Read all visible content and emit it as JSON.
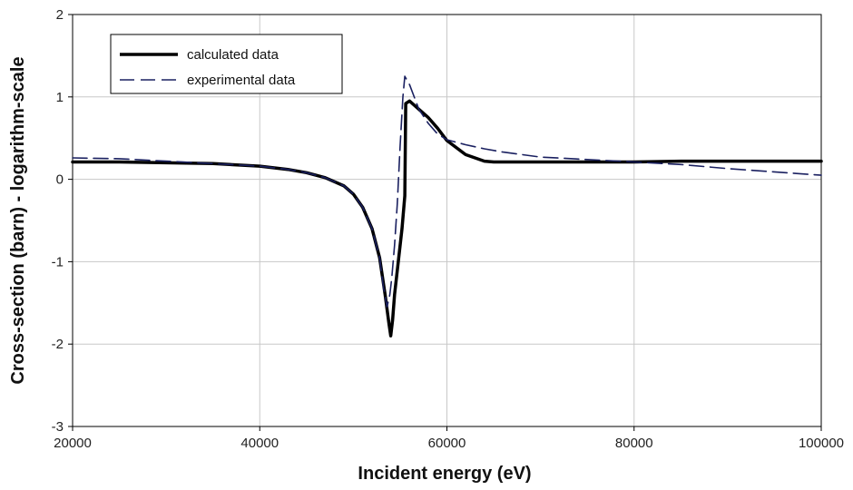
{
  "chart_data": {
    "type": "line",
    "title": "",
    "xlabel": "Incident energy (eV)",
    "ylabel": "Cross-section (barn) - logarithm-scale",
    "xlim": [
      20000,
      100000
    ],
    "ylim": [
      -3,
      2
    ],
    "xticks": [
      20000,
      40000,
      60000,
      80000,
      100000
    ],
    "yticks": [
      2,
      1,
      0,
      -1,
      -2,
      -3
    ],
    "grid": true,
    "legend": "top-left",
    "series": [
      {
        "name": "calculated data",
        "style": "solid",
        "color": "#000000",
        "x": [
          20000,
          25000,
          30000,
          35000,
          40000,
          43000,
          45000,
          47000,
          49000,
          50000,
          51000,
          52000,
          52800,
          53400,
          53800,
          54000,
          54200,
          54400,
          54800,
          55200,
          55500,
          55600,
          56000,
          57000,
          58000,
          59000,
          60000,
          62000,
          64000,
          65000,
          70000,
          80000,
          85000,
          90000,
          100000
        ],
        "y": [
          0.21,
          0.21,
          0.2,
          0.19,
          0.16,
          0.12,
          0.08,
          0.02,
          -0.08,
          -0.18,
          -0.34,
          -0.6,
          -0.95,
          -1.4,
          -1.75,
          -1.9,
          -1.7,
          -1.4,
          -1.0,
          -0.6,
          -0.2,
          0.92,
          0.95,
          0.85,
          0.75,
          0.62,
          0.47,
          0.3,
          0.22,
          0.21,
          0.21,
          0.21,
          0.22,
          0.22,
          0.22
        ]
      },
      {
        "name": "experimental data",
        "style": "dashed",
        "color": "#1a2060",
        "x": [
          20000,
          25000,
          30000,
          35000,
          40000,
          43000,
          45000,
          47000,
          49000,
          50000,
          51000,
          52000,
          52800,
          53200,
          53600,
          53900,
          54100,
          54400,
          54700,
          55000,
          55300,
          55500,
          56000,
          57000,
          58000,
          59000,
          60000,
          62000,
          64000,
          66000,
          70000,
          80000,
          85000,
          90000,
          100000
        ],
        "y": [
          0.26,
          0.25,
          0.22,
          0.19,
          0.16,
          0.12,
          0.08,
          0.02,
          -0.08,
          -0.18,
          -0.34,
          -0.6,
          -0.95,
          -1.3,
          -1.55,
          -1.4,
          -1.2,
          -0.8,
          -0.3,
          0.4,
          1.0,
          1.25,
          1.15,
          0.85,
          0.68,
          0.55,
          0.48,
          0.42,
          0.37,
          0.33,
          0.27,
          0.21,
          0.18,
          0.13,
          0.05
        ]
      }
    ]
  }
}
